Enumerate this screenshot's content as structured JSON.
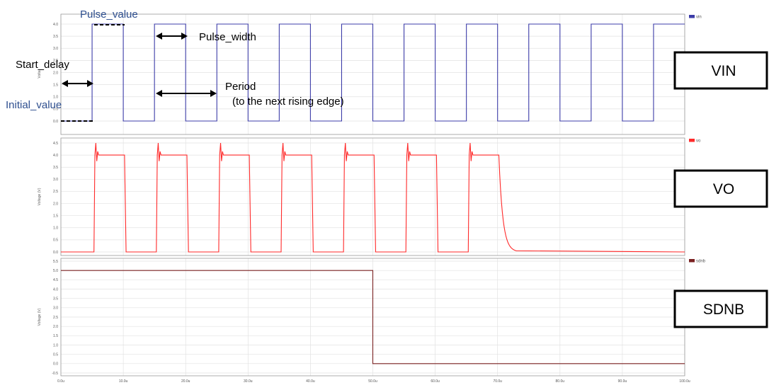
{
  "colors": {
    "vin": "#3c3ca8",
    "vo": "#ff2a2a",
    "sdnb": "#7a2020"
  },
  "x_ticks": [
    "0.0u",
    "10.0u",
    "20.0u",
    "30.0u",
    "40.0u",
    "50.0u",
    "60.0u",
    "70.0u",
    "80.0u",
    "90.0u",
    "100.0u"
  ],
  "panels": [
    {
      "id": "vin",
      "ylabel": "Volta",
      "legend": "vin",
      "box_label": "VIN",
      "yticks": [
        "0.0",
        "0.5",
        "1.0",
        "1.5",
        "2.0",
        "2.5",
        "3.0",
        "3.5",
        "4.0"
      ]
    },
    {
      "id": "vo",
      "ylabel": "Voltage (V)",
      "legend": "vo",
      "box_label": "VO",
      "yticks": [
        "0.0",
        "0.5",
        "1.0",
        "1.5",
        "2.0",
        "2.5",
        "3.0",
        "3.5",
        "4.0",
        "4.5"
      ]
    },
    {
      "id": "sdnb",
      "ylabel": "Voltage (V)",
      "legend": "sdnb",
      "box_label": "SDNB",
      "yticks": [
        "-0.5",
        "0.0",
        "0.5",
        "1.0",
        "1.5",
        "2.0",
        "2.5",
        "3.0",
        "3.5",
        "4.0",
        "4.5",
        "5.0",
        "5.5"
      ]
    }
  ],
  "annotations": {
    "pulse_value": "Pulse_value",
    "pulse_width": "Pulse_width",
    "start_delay": "Start_delay",
    "period": "Period",
    "period_note": "(to the next rising edge)",
    "initial_value": "Initial_value"
  },
  "chart_data": [
    {
      "type": "line",
      "name": "vin",
      "xunit": "us",
      "xlim": [
        0,
        100
      ],
      "ylim": [
        -0.1,
        4.4
      ],
      "x": [
        0,
        5,
        5,
        10,
        10,
        15,
        15,
        20,
        20,
        25,
        25,
        30,
        30,
        35,
        35,
        40,
        40,
        45,
        45,
        50,
        50,
        55,
        55,
        60,
        60,
        65,
        65,
        70,
        70,
        75,
        75,
        80,
        80,
        85,
        85,
        90,
        90,
        95,
        95,
        100
      ],
      "y": [
        0,
        0,
        4,
        4,
        0,
        0,
        4,
        4,
        0,
        0,
        4,
        4,
        0,
        0,
        4,
        4,
        0,
        0,
        4,
        4,
        0,
        0,
        4,
        4,
        0,
        0,
        4,
        4,
        0,
        0,
        4,
        4,
        0,
        0,
        4,
        4,
        0,
        0,
        4,
        4
      ]
    },
    {
      "type": "line",
      "name": "vo",
      "xunit": "us",
      "xlim": [
        0,
        100
      ],
      "ylim": [
        0,
        4.5
      ],
      "pulses": [
        [
          5.3,
          10.2
        ],
        [
          15.3,
          20.2
        ],
        [
          25.3,
          30.2
        ],
        [
          35.3,
          40.2
        ],
        [
          45.3,
          50.2
        ],
        [
          55.3,
          60.2
        ],
        [
          65.3,
          70.2
        ]
      ],
      "high": 4.0,
      "overshoot": 4.5,
      "decay_end": 73
    },
    {
      "type": "line",
      "name": "sdnb",
      "xunit": "us",
      "xlim": [
        0,
        100
      ],
      "ylim": [
        -0.5,
        5.5
      ],
      "x": [
        0,
        50,
        50,
        100
      ],
      "y": [
        5,
        5,
        0,
        0
      ]
    }
  ]
}
